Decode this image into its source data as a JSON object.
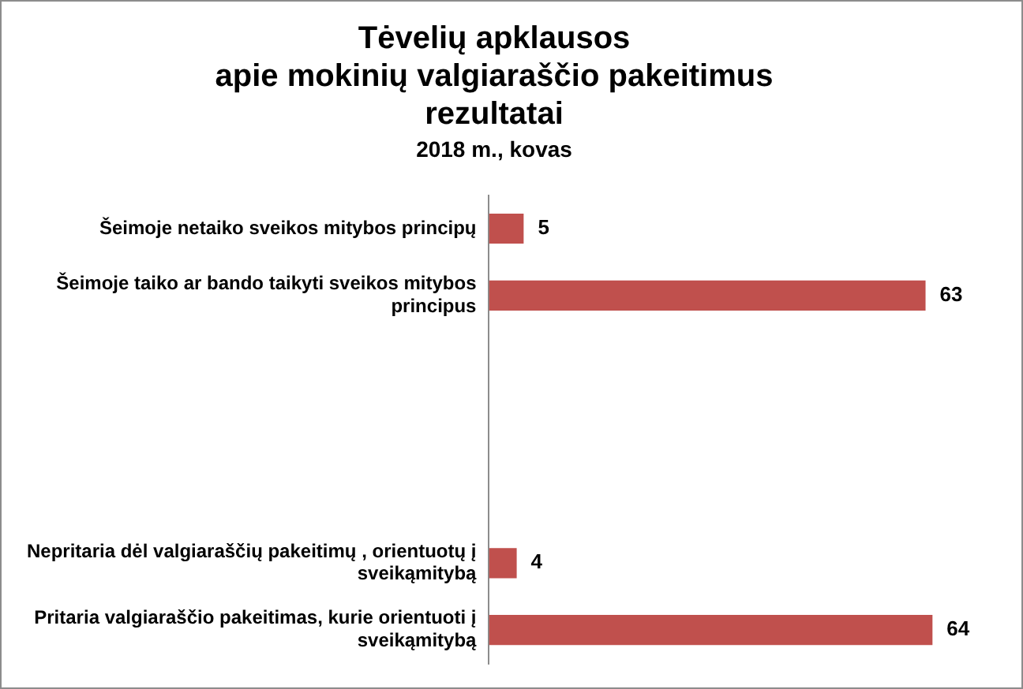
{
  "chart_data": {
    "type": "bar",
    "orientation": "horizontal",
    "title": "Tėvelių apklausos\napie mokinių valgiaraščio pakeitimus\nrezultatai",
    "subtitle": "2018 m., kovas",
    "categories": [
      "Šeimoje netaiko sveikos mitybos principų",
      "Šeimoje taiko ar bando taikyti sveikos mitybos principus",
      null,
      null,
      null,
      "Nepritaria dėl valgiaraščių pakeitimų , orientuotų į sveikąmitybą",
      "Pritaria valgiaraščio pakeitimas, kurie orientuoti į sveikąmitybą"
    ],
    "values": [
      5,
      63,
      null,
      null,
      null,
      4,
      64
    ],
    "color": "#c0504d",
    "data_labels": true
  }
}
